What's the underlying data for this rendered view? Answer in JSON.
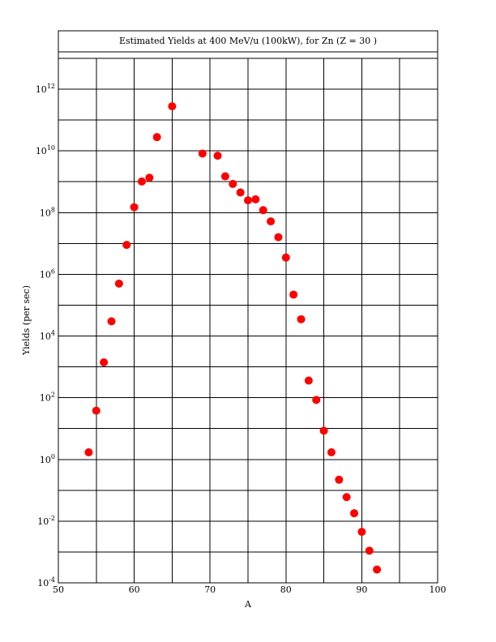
{
  "chart_data": {
    "type": "scatter",
    "title": "Estimated Yields at 400 MeV/u (100kW), for Zn (Z = 30 )",
    "xlabel": "A",
    "ylabel": "Yields (per sec)",
    "xlim": [
      50,
      100
    ],
    "ylim_exponent": [
      -4,
      13
    ],
    "y_scale": "log",
    "grid": true,
    "x_ticks": [
      50,
      60,
      70,
      80,
      90,
      100
    ],
    "y_tick_base": "10",
    "y_tick_exponents": [
      -4,
      -2,
      0,
      2,
      4,
      6,
      8,
      10,
      12
    ],
    "marker_color": "#ff0000",
    "series": [
      {
        "x": [
          54,
          55,
          56,
          57,
          58,
          59,
          60,
          61,
          62,
          63,
          65,
          69,
          71,
          72,
          73,
          74,
          75,
          76,
          77,
          78,
          79,
          80,
          81,
          82,
          83,
          84,
          85,
          86,
          87,
          88,
          89,
          90,
          91,
          92
        ],
        "y": [
          1.7,
          38,
          1400.0,
          30000.0,
          500000.0,
          9000000.0,
          150000000.0,
          1020000000.0,
          1350000000.0,
          28000000000.0,
          280000000000.0,
          8200000000.0,
          7000000000.0,
          1500000000.0,
          850000000.0,
          450000000.0,
          250000000.0,
          270000000.0,
          120000000.0,
          52000000.0,
          16000000.0,
          3500000.0,
          220000.0,
          35000.0,
          360,
          85,
          8.5,
          1.7,
          0.22,
          0.06,
          0.018,
          0.0045,
          0.0011,
          0.00027
        ]
      }
    ]
  }
}
